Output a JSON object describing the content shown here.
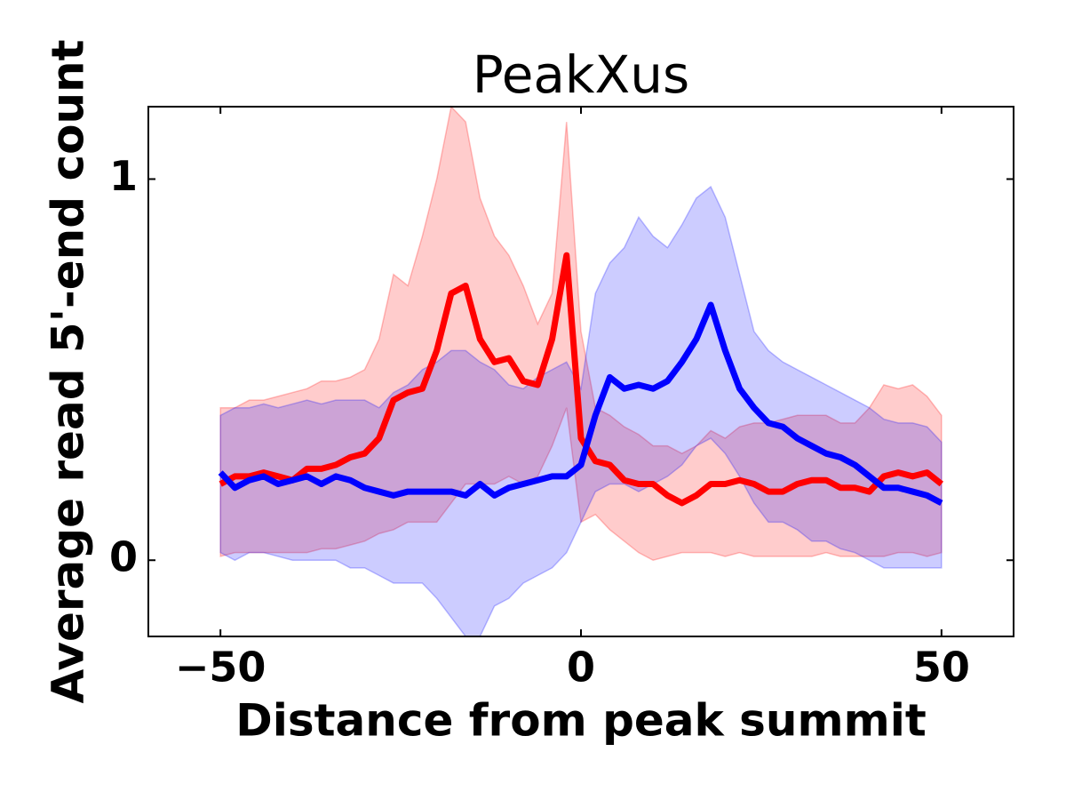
{
  "chart_data": {
    "type": "line",
    "title": "PeakXus",
    "x_label": "Distance from peak summit",
    "y_label": "Average read 5'-end count",
    "x": [
      -50,
      -48,
      -46,
      -44,
      -42,
      -40,
      -38,
      -36,
      -34,
      -32,
      -30,
      -28,
      -26,
      -24,
      -22,
      -20,
      -18,
      -16,
      -14,
      -12,
      -10,
      -8,
      -6,
      -4,
      -2,
      0,
      2,
      4,
      6,
      8,
      10,
      12,
      14,
      16,
      18,
      20,
      22,
      24,
      26,
      28,
      30,
      32,
      34,
      36,
      38,
      40,
      42,
      44,
      46,
      48,
      50
    ],
    "series": [
      {
        "color": "#ff0000",
        "values": [
          0.2,
          0.22,
          0.22,
          0.23,
          0.22,
          0.21,
          0.24,
          0.24,
          0.25,
          0.27,
          0.28,
          0.32,
          0.42,
          0.44,
          0.45,
          0.55,
          0.7,
          0.72,
          0.58,
          0.52,
          0.53,
          0.47,
          0.46,
          0.58,
          0.8,
          0.32,
          0.26,
          0.25,
          0.21,
          0.2,
          0.2,
          0.17,
          0.15,
          0.17,
          0.2,
          0.2,
          0.21,
          0.2,
          0.18,
          0.18,
          0.2,
          0.21,
          0.21,
          0.19,
          0.19,
          0.18,
          0.22,
          0.23,
          0.22,
          0.23,
          0.2
        ],
        "upper": [
          0.4,
          0.4,
          0.42,
          0.42,
          0.43,
          0.44,
          0.45,
          0.47,
          0.47,
          0.48,
          0.5,
          0.58,
          0.75,
          0.72,
          0.85,
          1.0,
          1.19,
          1.15,
          0.95,
          0.85,
          0.8,
          0.72,
          0.62,
          0.7,
          1.15,
          0.6,
          0.4,
          0.38,
          0.35,
          0.33,
          0.3,
          0.3,
          0.28,
          0.3,
          0.34,
          0.32,
          0.35,
          0.36,
          0.36,
          0.37,
          0.38,
          0.38,
          0.38,
          0.36,
          0.36,
          0.4,
          0.46,
          0.45,
          0.46,
          0.43,
          0.38
        ],
        "lower": [
          0.01,
          0.02,
          0.02,
          0.02,
          0.02,
          0.02,
          0.02,
          0.03,
          0.03,
          0.04,
          0.05,
          0.07,
          0.08,
          0.1,
          0.1,
          0.1,
          0.15,
          0.2,
          0.2,
          0.2,
          0.22,
          0.2,
          0.22,
          0.3,
          0.4,
          0.1,
          0.12,
          0.08,
          0.05,
          0.02,
          0.0,
          0.01,
          0.02,
          0.02,
          0.02,
          0.01,
          0.02,
          0.01,
          0.01,
          0.01,
          0.01,
          0.01,
          0.02,
          0.01,
          0.01,
          0.01,
          0.01,
          0.02,
          0.02,
          0.01,
          0.02
        ]
      },
      {
        "color": "#0000ff",
        "values": [
          0.23,
          0.19,
          0.21,
          0.22,
          0.2,
          0.21,
          0.22,
          0.2,
          0.22,
          0.21,
          0.19,
          0.18,
          0.17,
          0.18,
          0.18,
          0.18,
          0.18,
          0.17,
          0.2,
          0.17,
          0.19,
          0.2,
          0.21,
          0.22,
          0.22,
          0.25,
          0.38,
          0.48,
          0.45,
          0.46,
          0.45,
          0.47,
          0.52,
          0.58,
          0.67,
          0.55,
          0.45,
          0.4,
          0.36,
          0.35,
          0.32,
          0.3,
          0.28,
          0.27,
          0.25,
          0.22,
          0.19,
          0.19,
          0.18,
          0.17,
          0.15
        ],
        "upper": [
          0.38,
          0.4,
          0.4,
          0.41,
          0.4,
          0.41,
          0.42,
          0.41,
          0.42,
          0.42,
          0.42,
          0.4,
          0.44,
          0.46,
          0.5,
          0.52,
          0.55,
          0.55,
          0.52,
          0.5,
          0.46,
          0.45,
          0.48,
          0.5,
          0.52,
          0.45,
          0.7,
          0.78,
          0.82,
          0.9,
          0.85,
          0.82,
          0.88,
          0.95,
          0.98,
          0.9,
          0.75,
          0.6,
          0.55,
          0.52,
          0.5,
          0.48,
          0.46,
          0.44,
          0.42,
          0.4,
          0.37,
          0.36,
          0.36,
          0.35,
          0.31
        ],
        "lower": [
          0.02,
          0.0,
          0.02,
          0.02,
          0.01,
          0.0,
          0.0,
          0.0,
          0.0,
          -0.02,
          -0.02,
          -0.04,
          -0.06,
          -0.06,
          -0.06,
          -0.1,
          -0.15,
          -0.2,
          -0.2,
          -0.12,
          -0.1,
          -0.06,
          -0.04,
          -0.02,
          0.02,
          0.1,
          0.18,
          0.2,
          0.2,
          0.18,
          0.2,
          0.22,
          0.25,
          0.3,
          0.32,
          0.28,
          0.22,
          0.15,
          0.1,
          0.1,
          0.08,
          0.05,
          0.05,
          0.03,
          0.02,
          0.0,
          -0.02,
          -0.02,
          -0.02,
          -0.02,
          -0.02
        ]
      }
    ],
    "xlim": [
      -60,
      60
    ],
    "xticks": [
      {
        "value": -50,
        "label": "−50"
      },
      0,
      50
    ],
    "ylim": [
      -0.2,
      1.19
    ],
    "yticks": [
      0,
      1
    ]
  }
}
